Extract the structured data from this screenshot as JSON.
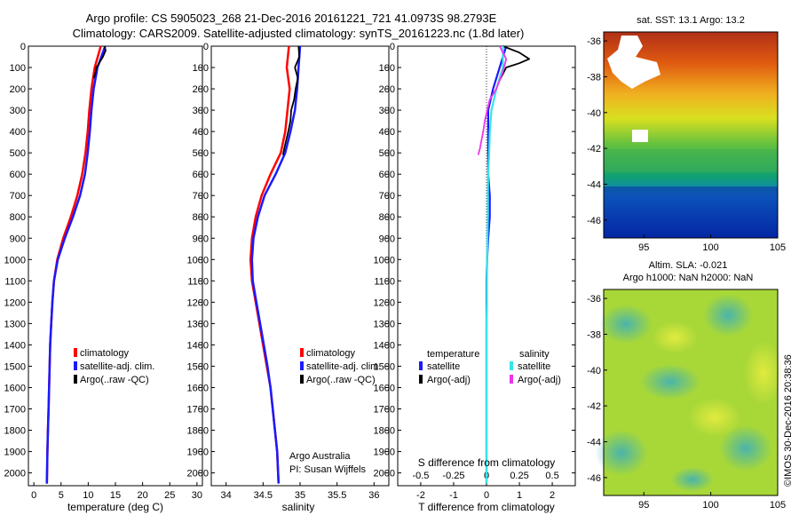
{
  "header": {
    "line1": "Argo profile: CS 5905023_268 21-Dec-2016 20161221_721 41.0973S 98.2793E",
    "line2": "Climatology: CARS2009. Satellite-adjusted climatology: synTS_20161223.nc (1.8d later)"
  },
  "colors": {
    "climatology": "#ff0000",
    "satellite": "#1a1aff",
    "argo": "#000000",
    "satellite_salinity": "#33e6e6",
    "argo_salinity": "#ee33ee"
  },
  "depth_ticks": [
    "0",
    "100",
    "200",
    "300",
    "400",
    "500",
    "600",
    "700",
    "800",
    "900",
    "1000",
    "1100",
    "1200",
    "1300",
    "1400",
    "1500",
    "1600",
    "1700",
    "1800",
    "1900",
    "2000"
  ],
  "legend": {
    "climatology": "climatology",
    "satellite_adj": "satellite-adj. clim.",
    "argo_raw": "Argo(..raw -QC)",
    "temperature_header": "temperature",
    "salinity_header": "salinity",
    "satellite": "satellite",
    "argo_adj": "Argo(-adj)"
  },
  "credit": {
    "line1": "Argo Australia",
    "line2": "PI: Susan Wijffels"
  },
  "chart_data": [
    {
      "type": "line",
      "xlabel": "temperature (deg C)",
      "ylabel": "",
      "xlim": [
        -1,
        31
      ],
      "ylim": [
        2060,
        0
      ],
      "x_ticks": [
        "0",
        "5",
        "10",
        "15",
        "20",
        "25",
        "30"
      ],
      "series": [
        {
          "name": "climatology",
          "x": [
            12.3,
            11.2,
            10.6,
            10.2,
            9.9,
            9.5,
            8.9,
            8.0,
            6.8,
            5.4,
            4.3,
            3.7,
            3.4,
            3.2,
            3.0,
            2.9,
            2.8,
            2.7,
            2.6,
            2.5,
            2.4
          ],
          "depth": [
            0,
            100,
            200,
            300,
            400,
            500,
            600,
            700,
            800,
            900,
            1000,
            1100,
            1200,
            1300,
            1400,
            1500,
            1600,
            1700,
            1800,
            1900,
            2050
          ]
        },
        {
          "name": "satellite-adj. clim.",
          "x": [
            13.1,
            11.7,
            11.0,
            10.6,
            10.3,
            9.9,
            9.4,
            8.5,
            7.2,
            5.7,
            4.4,
            3.7,
            3.4,
            3.2,
            3.0,
            2.9,
            2.8,
            2.7,
            2.6,
            2.5,
            2.4
          ],
          "depth": [
            0,
            100,
            200,
            300,
            400,
            500,
            600,
            700,
            800,
            900,
            1000,
            1100,
            1200,
            1300,
            1400,
            1500,
            1600,
            1700,
            1800,
            1900,
            2050
          ]
        },
        {
          "name": "Argo(..raw -QC)",
          "x": [
            13.0,
            13.2,
            12.7,
            12.0,
            11.5,
            11.3,
            11.0
          ],
          "depth": [
            0,
            20,
            50,
            80,
            100,
            130,
            150
          ]
        }
      ]
    },
    {
      "type": "line",
      "xlabel": "salinity",
      "ylabel": "",
      "xlim": [
        33.8,
        36.2
      ],
      "ylim": [
        2060,
        0
      ],
      "x_ticks": [
        "34",
        "34.5",
        "35",
        "35.5",
        "36"
      ],
      "series": [
        {
          "name": "climatology",
          "x": [
            34.85,
            34.82,
            34.86,
            34.83,
            34.8,
            34.74,
            34.6,
            34.48,
            34.4,
            34.35,
            34.33,
            34.35,
            34.4,
            34.45,
            34.5,
            34.55,
            34.6,
            34.63,
            34.66,
            34.69,
            34.71
          ],
          "depth": [
            0,
            100,
            200,
            300,
            400,
            500,
            600,
            700,
            800,
            900,
            1000,
            1100,
            1200,
            1300,
            1400,
            1500,
            1600,
            1700,
            1800,
            1900,
            2050
          ]
        },
        {
          "name": "satellite-adj. clim.",
          "x": [
            35.0,
            34.98,
            34.96,
            34.93,
            34.87,
            34.8,
            34.67,
            34.52,
            34.43,
            34.37,
            34.35,
            34.36,
            34.41,
            34.46,
            34.51,
            34.56,
            34.6,
            34.63,
            34.66,
            34.69,
            34.71
          ],
          "depth": [
            0,
            100,
            200,
            300,
            400,
            500,
            600,
            700,
            800,
            900,
            1000,
            1100,
            1200,
            1300,
            1400,
            1500,
            1600,
            1700,
            1800,
            1900,
            2050
          ]
        },
        {
          "name": "Argo(..raw -QC)",
          "x": [
            34.98,
            34.99,
            34.93,
            34.97,
            34.94,
            34.92,
            34.88,
            34.87,
            34.84,
            34.82,
            34.8,
            34.78,
            34.77
          ],
          "depth": [
            0,
            50,
            100,
            150,
            200,
            250,
            300,
            350,
            400,
            430,
            460,
            490,
            510
          ]
        }
      ]
    },
    {
      "type": "line",
      "xlabel": "T difference from climatology",
      "title": "S difference from climatology",
      "xlim": [
        -2.7,
        2.7
      ],
      "ylim": [
        2060,
        0
      ],
      "x_ticks": [
        "-2",
        "-1",
        "0",
        "1",
        "2"
      ],
      "x_ticks_top": [
        "-0.5",
        "-0.25",
        "0",
        "0.25",
        "0.5"
      ],
      "series": [
        {
          "name": "temperature satellite",
          "x": [
            0.6,
            0.4,
            0.2,
            0.05,
            0.05,
            0.05,
            0.05,
            0.1,
            0.1,
            0.05,
            0.02,
            0,
            0,
            0,
            0,
            0,
            0,
            0,
            0,
            0,
            0
          ],
          "depth": [
            0,
            100,
            200,
            300,
            400,
            500,
            600,
            700,
            800,
            900,
            1000,
            1100,
            1200,
            1300,
            1400,
            1500,
            1600,
            1700,
            1800,
            1900,
            2050
          ]
        },
        {
          "name": "temperature Argo(-adj)",
          "x": [
            0.5,
            1.0,
            1.3,
            1.0,
            0.6,
            0.5,
            0.4
          ],
          "depth": [
            0,
            30,
            60,
            80,
            100,
            130,
            160
          ]
        },
        {
          "name": "salinity satellite",
          "x": [
            0.5,
            0.5,
            0.3,
            0.15,
            0.1,
            0.08,
            0.05,
            0.04,
            0.04,
            0.03,
            0.02,
            0.01,
            0.01,
            0,
            0,
            0,
            0,
            0,
            0,
            0,
            0
          ],
          "depth": [
            0,
            100,
            200,
            300,
            400,
            500,
            600,
            700,
            800,
            900,
            1000,
            1100,
            1200,
            1300,
            1400,
            1500,
            1600,
            1700,
            1800,
            1900,
            2050
          ]
        },
        {
          "name": "salinity Argo(-adj)",
          "x": [
            0.4,
            0.6,
            0.5,
            0.3,
            0.1,
            0.05,
            -0.05,
            -0.1,
            -0.15,
            -0.2,
            -0.25
          ],
          "depth": [
            0,
            60,
            120,
            200,
            250,
            280,
            350,
            400,
            440,
            480,
            510
          ]
        }
      ]
    },
    {
      "type": "heatmap",
      "title": "sat. SST: 13.1 Argo: 13.2",
      "xlim": [
        92,
        105
      ],
      "ylim": [
        -47,
        -35.5
      ],
      "x_ticks": [
        "95",
        "100",
        "105"
      ],
      "y_ticks": [
        "-36",
        "-38",
        "-40",
        "-42",
        "-44",
        "-46"
      ]
    },
    {
      "type": "heatmap",
      "title": "Altim. SLA: -0.021",
      "subtitle": "Argo h1000: NaN h2000: NaN",
      "xlim": [
        92,
        105
      ],
      "ylim": [
        -47,
        -35.5
      ],
      "x_ticks": [
        "95",
        "100",
        "105"
      ],
      "y_ticks": [
        "-36",
        "-38",
        "-40",
        "-42",
        "-44",
        "-46"
      ]
    }
  ],
  "side_label": "©IMOS 30-Dec-2016 20:38:36"
}
